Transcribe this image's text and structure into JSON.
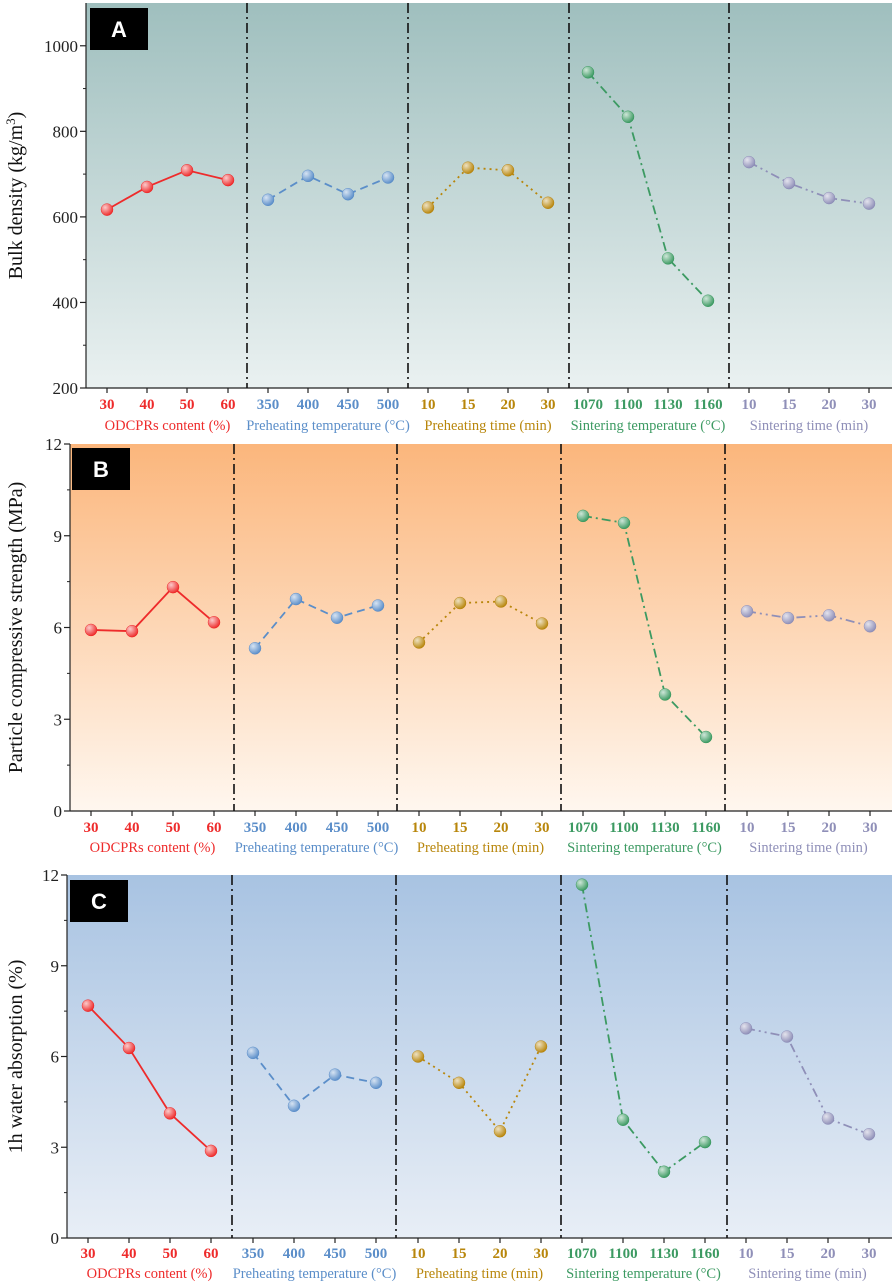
{
  "chart_data": [
    {
      "type": "line",
      "panel_label": "A",
      "ylabel": "Bulk density (kg/m3)",
      "ylabel_main": "Bulk density (kg/m",
      "ylabel_sup": "3",
      "ylabel_end": ")",
      "ylim": [
        200,
        1100
      ],
      "yticks": [
        200,
        400,
        600,
        800,
        1000
      ],
      "ytick_labels": [
        "200",
        "400",
        "600",
        "800",
        "1000"
      ],
      "background": {
        "top": "#9fbfbe",
        "bottom": "#eaf1f1"
      },
      "groups": [
        {
          "name": "ODCPRs content (%)",
          "color": "#ee2b2b",
          "dash": "",
          "categories": [
            "30",
            "40",
            "50",
            "60"
          ],
          "values": [
            617,
            670,
            709,
            686
          ]
        },
        {
          "name": "Preheating temperature (°C)",
          "color": "#5b8ec9",
          "dash": "8,5",
          "categories": [
            "350",
            "400",
            "450",
            "500"
          ],
          "values": [
            640,
            696,
            653,
            692
          ]
        },
        {
          "name": "Preheating time (min)",
          "color": "#b8860b",
          "dash": "2,4",
          "categories": [
            "10",
            "15",
            "20",
            "30"
          ],
          "values": [
            622,
            715,
            709,
            633
          ]
        },
        {
          "name": "Sintering temperature (°C)",
          "color": "#3c9a62",
          "dash": "9,4,2,4",
          "categories": [
            "1070",
            "1100",
            "1130",
            "1160"
          ],
          "values": [
            938,
            834,
            503,
            404
          ]
        },
        {
          "name": "Sintering time (min)",
          "color": "#8f8fb8",
          "dash": "9,4,2,4,2,4",
          "categories": [
            "10",
            "15",
            "20",
            "30"
          ],
          "values": [
            728,
            679,
            644,
            631
          ]
        }
      ]
    },
    {
      "type": "line",
      "panel_label": "B",
      "ylabel": "Particle compressive strength (MPa)",
      "ylim": [
        0,
        12
      ],
      "yticks": [
        0,
        3,
        6,
        9,
        12
      ],
      "ytick_labels": [
        "0",
        "3",
        "6",
        "9",
        "12"
      ],
      "background": {
        "top": "#fbb67c",
        "bottom": "#fff7ef"
      },
      "groups": [
        {
          "name": "ODCPRs content (%)",
          "color": "#ee2b2b",
          "dash": "",
          "categories": [
            "30",
            "40",
            "50",
            "60"
          ],
          "values": [
            5.92,
            5.88,
            7.32,
            6.17
          ]
        },
        {
          "name": "Preheating temperature (°C)",
          "color": "#5b8ec9",
          "dash": "8,5",
          "categories": [
            "350",
            "400",
            "450",
            "500"
          ],
          "values": [
            5.32,
            6.93,
            6.32,
            6.72
          ]
        },
        {
          "name": "Preheating time (min)",
          "color": "#b8860b",
          "dash": "2,4",
          "categories": [
            "10",
            "15",
            "20",
            "30"
          ],
          "values": [
            5.51,
            6.8,
            6.85,
            6.13
          ]
        },
        {
          "name": "Sintering temperature (°C)",
          "color": "#3c9a62",
          "dash": "9,4,2,4",
          "categories": [
            "1070",
            "1100",
            "1130",
            "1160"
          ],
          "values": [
            9.65,
            9.42,
            3.81,
            2.42
          ]
        },
        {
          "name": "Sintering time (min)",
          "color": "#8f8fb8",
          "dash": "9,4,2,4,2,4",
          "categories": [
            "10",
            "15",
            "20",
            "30"
          ],
          "values": [
            6.53,
            6.31,
            6.4,
            6.04
          ]
        }
      ]
    },
    {
      "type": "line",
      "panel_label": "C",
      "ylabel": "1h water absorption (%)",
      "ylim": [
        0,
        12
      ],
      "yticks": [
        0,
        3,
        6,
        9,
        12
      ],
      "ytick_labels": [
        "0",
        "3",
        "6",
        "9",
        "12"
      ],
      "background": {
        "top": "#a8c3e2",
        "bottom": "#e8eef6"
      },
      "groups": [
        {
          "name": "ODCPRs content (%)",
          "color": "#ee2b2b",
          "dash": "",
          "categories": [
            "30",
            "40",
            "50",
            "60"
          ],
          "values": [
            7.68,
            6.28,
            4.12,
            2.88
          ]
        },
        {
          "name": "Preheating temperature (°C)",
          "color": "#5b8ec9",
          "dash": "8,5",
          "categories": [
            "350",
            "400",
            "450",
            "500"
          ],
          "values": [
            6.12,
            4.37,
            5.4,
            5.13
          ]
        },
        {
          "name": "Preheating time (min)",
          "color": "#b8860b",
          "dash": "2,4",
          "categories": [
            "10",
            "15",
            "20",
            "30"
          ],
          "values": [
            6.0,
            5.13,
            3.53,
            6.33
          ]
        },
        {
          "name": "Sintering temperature (°C)",
          "color": "#3c9a62",
          "dash": "9,4,2,4",
          "categories": [
            "1070",
            "1100",
            "1130",
            "1160"
          ],
          "values": [
            11.68,
            3.91,
            2.19,
            3.17
          ]
        },
        {
          "name": "Sintering time (min)",
          "color": "#8f8fb8",
          "dash": "9,4,2,4,2,4",
          "categories": [
            "10",
            "15",
            "20",
            "30"
          ],
          "values": [
            6.93,
            6.66,
            3.95,
            3.43
          ]
        }
      ]
    }
  ]
}
